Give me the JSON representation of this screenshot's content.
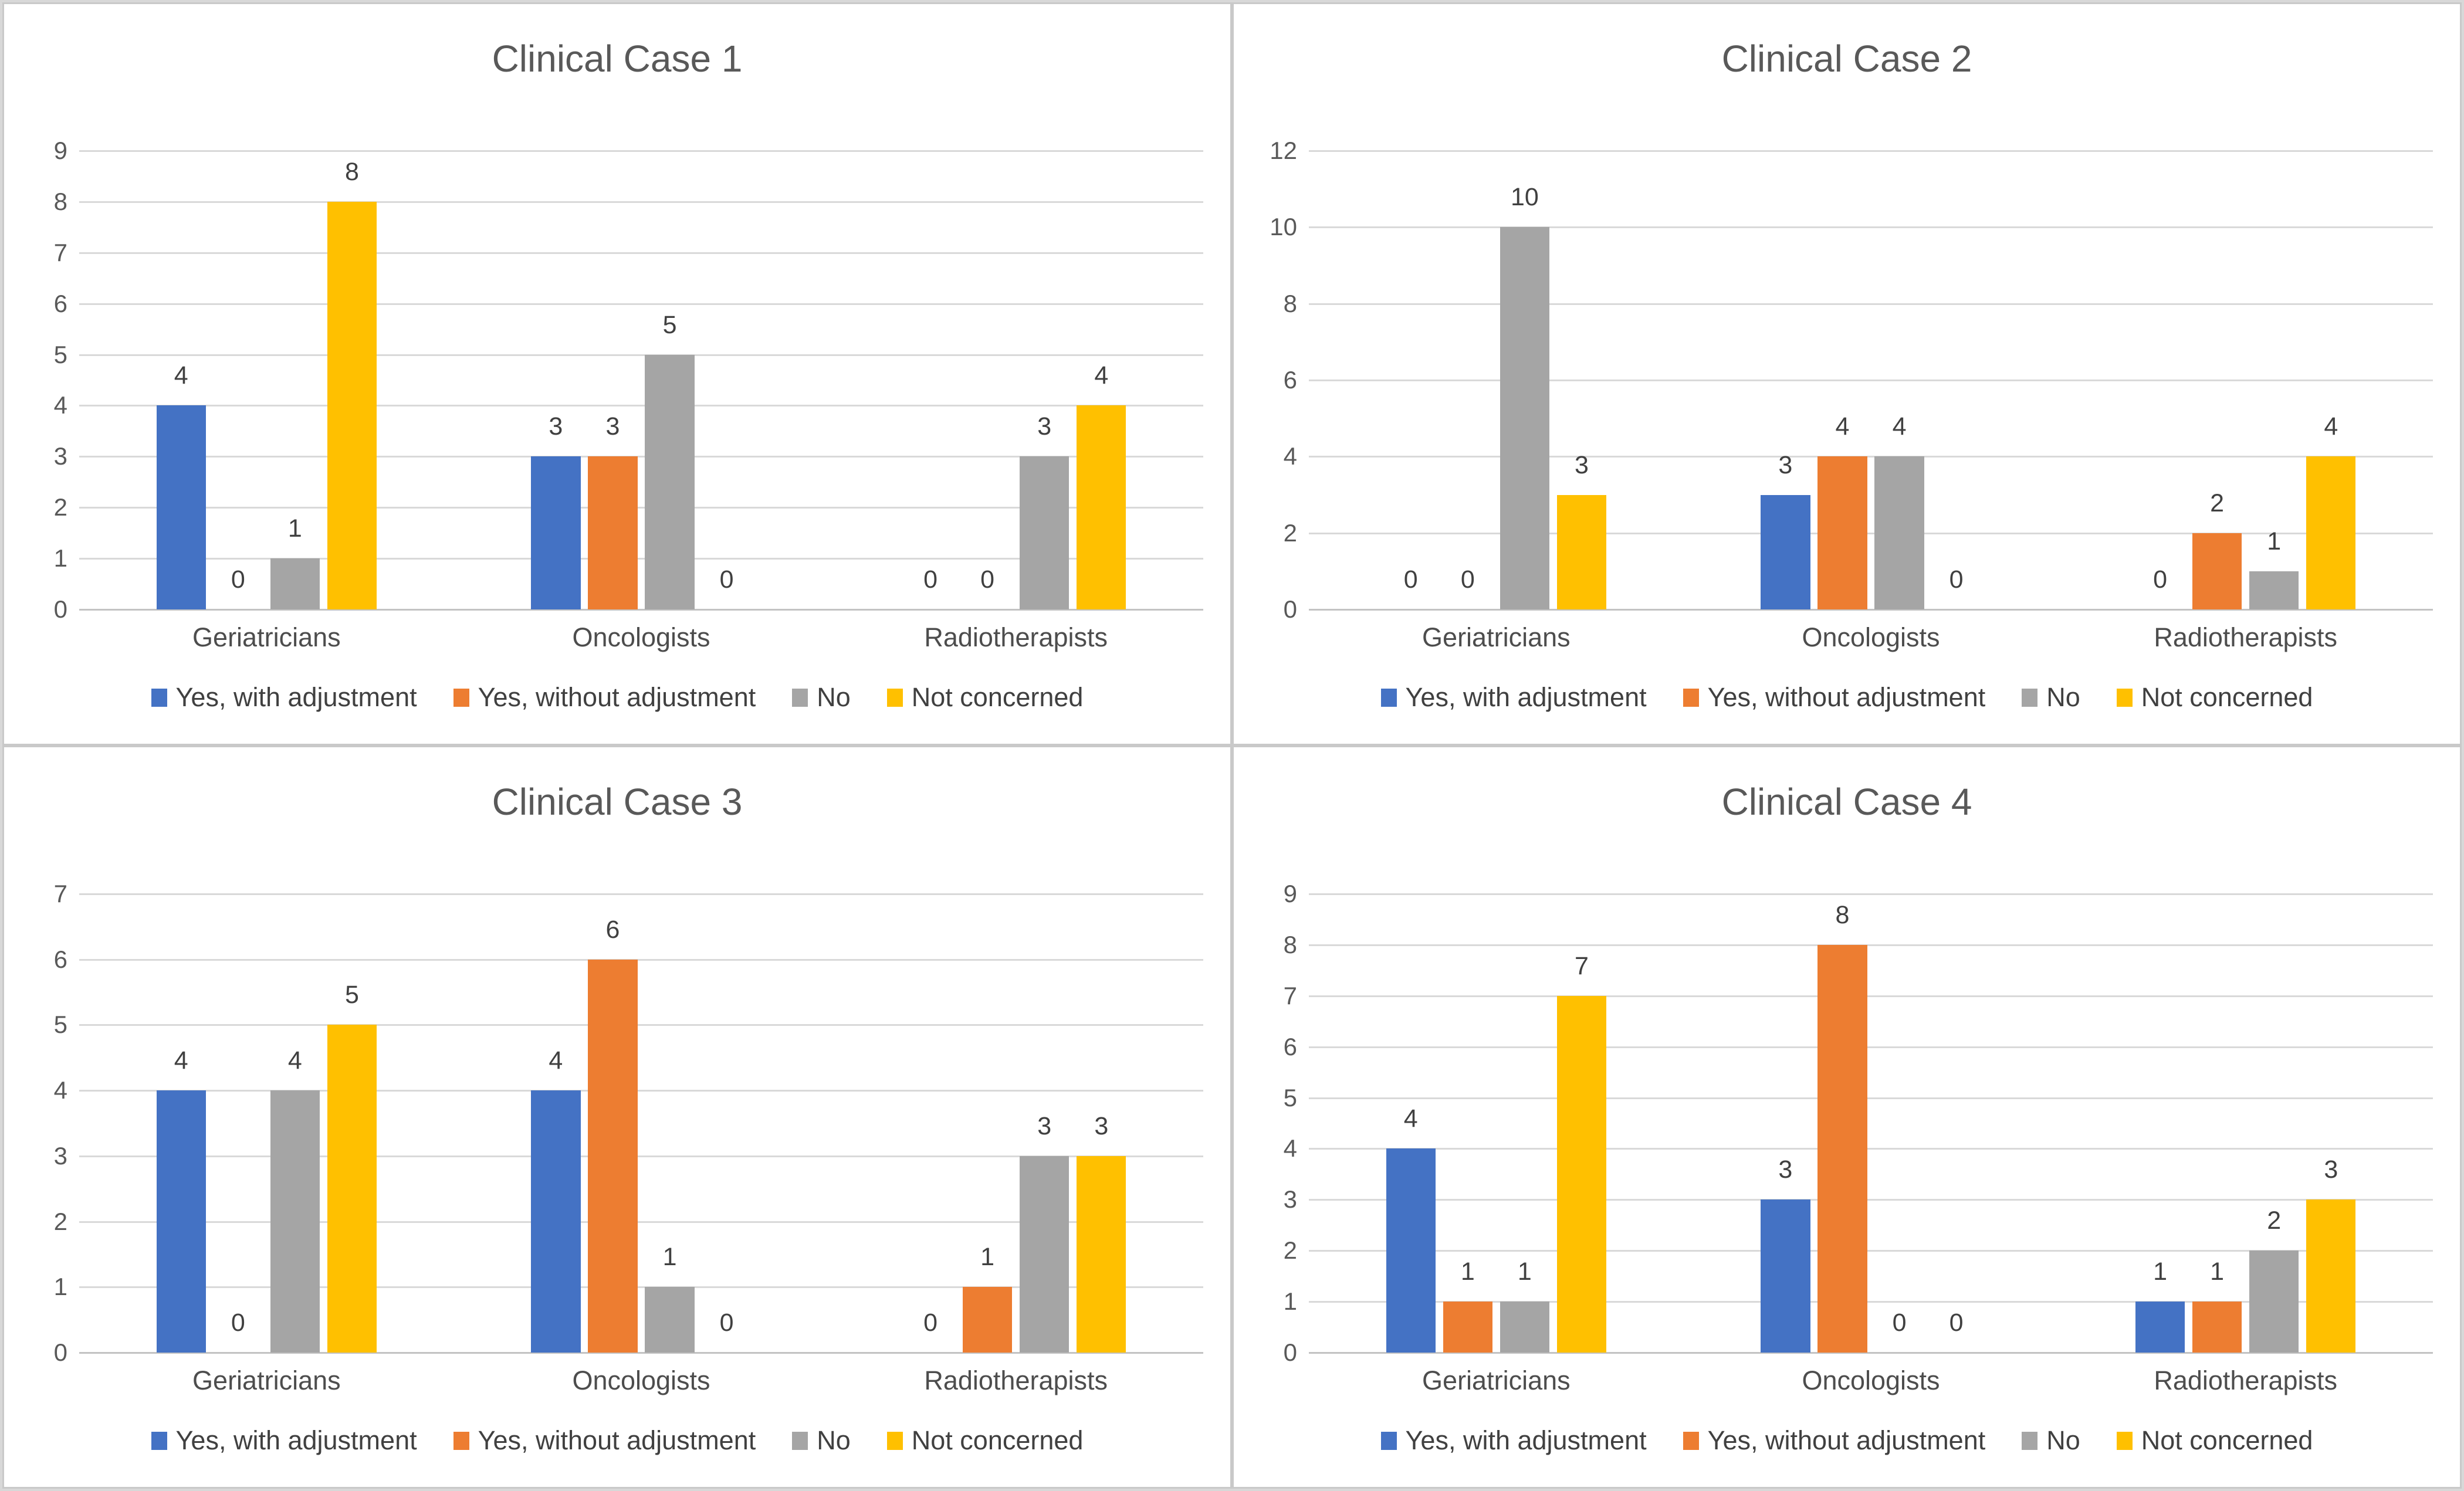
{
  "colors": {
    "blue": "#4472C4",
    "orange": "#ED7D31",
    "gray": "#A5A5A5",
    "yellow": "#FFC000",
    "gridline": "#D9D9D9",
    "text": "#595959",
    "panel_border": "#C9C9C9"
  },
  "chart_data": [
    {
      "type": "bar",
      "title": "Clinical Case 1",
      "categories": [
        "Geriatricians",
        "Oncologists",
        "Radiotherapists"
      ],
      "series": [
        {
          "name": "Yes, with adjustment",
          "color": "#4472C4",
          "values": [
            4,
            3,
            0
          ]
        },
        {
          "name": "Yes, without adjustment",
          "color": "#ED7D31",
          "values": [
            0,
            3,
            0
          ]
        },
        {
          "name": "No",
          "color": "#A5A5A5",
          "values": [
            1,
            5,
            3
          ]
        },
        {
          "name": "Not concerned",
          "color": "#FFC000",
          "values": [
            8,
            0,
            4
          ]
        }
      ],
      "ylim": [
        0,
        9
      ],
      "yticks": [
        0,
        1,
        2,
        3,
        4,
        5,
        6,
        7,
        8,
        9
      ],
      "grid": true,
      "legend_position": "bottom",
      "data_labels": true
    },
    {
      "type": "bar",
      "title": "Clinical Case 2",
      "categories": [
        "Geriatricians",
        "Oncologists",
        "Radiotherapists"
      ],
      "series": [
        {
          "name": "Yes, with adjustment",
          "color": "#4472C4",
          "values": [
            0,
            3,
            0
          ]
        },
        {
          "name": "Yes, without adjustment",
          "color": "#ED7D31",
          "values": [
            0,
            4,
            2
          ]
        },
        {
          "name": "No",
          "color": "#A5A5A5",
          "values": [
            10,
            4,
            1
          ]
        },
        {
          "name": "Not concerned",
          "color": "#FFC000",
          "values": [
            3,
            0,
            4
          ]
        }
      ],
      "ylim": [
        0,
        12
      ],
      "yticks": [
        0,
        2,
        4,
        6,
        8,
        10,
        12
      ],
      "grid": true,
      "legend_position": "bottom",
      "data_labels": true
    },
    {
      "type": "bar",
      "title": "Clinical Case 3",
      "categories": [
        "Geriatricians",
        "Oncologists",
        "Radiotherapists"
      ],
      "series": [
        {
          "name": "Yes, with adjustment",
          "color": "#4472C4",
          "values": [
            4,
            4,
            0
          ]
        },
        {
          "name": "Yes, without adjustment",
          "color": "#ED7D31",
          "values": [
            0,
            6,
            1
          ]
        },
        {
          "name": "No",
          "color": "#A5A5A5",
          "values": [
            4,
            1,
            3
          ]
        },
        {
          "name": "Not concerned",
          "color": "#FFC000",
          "values": [
            5,
            0,
            3
          ]
        }
      ],
      "ylim": [
        0,
        7
      ],
      "yticks": [
        0,
        1,
        2,
        3,
        4,
        5,
        6,
        7
      ],
      "grid": true,
      "legend_position": "bottom",
      "data_labels": true
    },
    {
      "type": "bar",
      "title": "Clinical Case 4",
      "categories": [
        "Geriatricians",
        "Oncologists",
        "Radiotherapists"
      ],
      "series": [
        {
          "name": "Yes, with adjustment",
          "color": "#4472C4",
          "values": [
            4,
            3,
            1
          ]
        },
        {
          "name": "Yes, without adjustment",
          "color": "#ED7D31",
          "values": [
            1,
            8,
            1
          ]
        },
        {
          "name": "No",
          "color": "#A5A5A5",
          "values": [
            1,
            0,
            2
          ]
        },
        {
          "name": "Not concerned",
          "color": "#FFC000",
          "values": [
            7,
            0,
            3
          ]
        }
      ],
      "ylim": [
        0,
        9
      ],
      "yticks": [
        0,
        1,
        2,
        3,
        4,
        5,
        6,
        7,
        8,
        9
      ],
      "grid": true,
      "legend_position": "bottom",
      "data_labels": true
    }
  ]
}
